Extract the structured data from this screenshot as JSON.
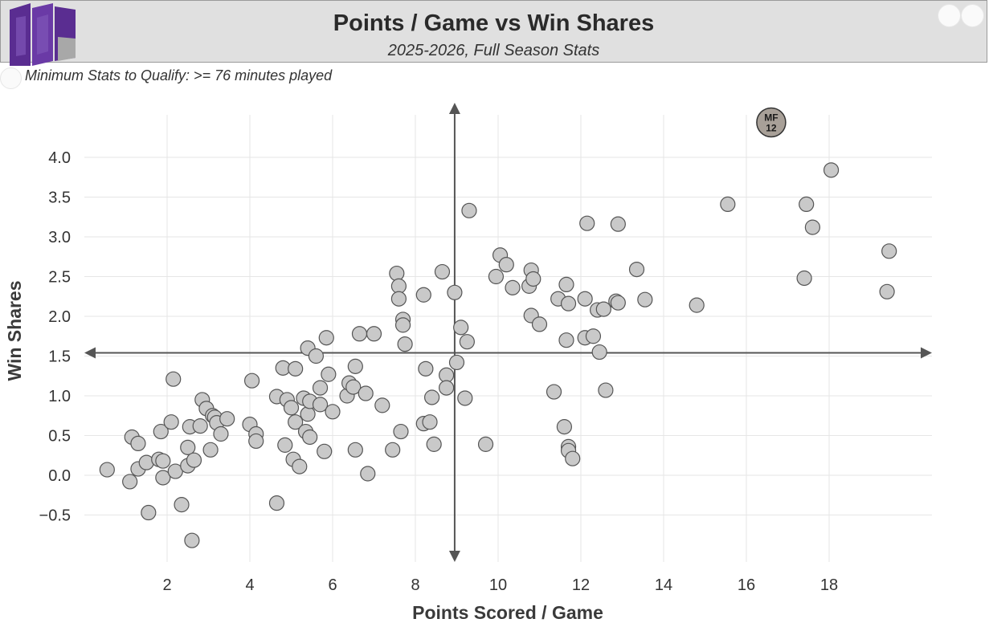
{
  "header": {
    "title": "Points / Game vs Win Shares",
    "subtitle": "2025-2026, Full Season Stats",
    "qualify_note": "Minimum Stats to Qualify: >= 76 minutes played"
  },
  "colors": {
    "point_fill": "#c9c9c9",
    "point_stroke": "#555555",
    "highlight_fill": "#a8a098",
    "axis_line": "#555555",
    "grid": "#e6e6e6",
    "logo": "#5a2d91"
  },
  "chart_data": {
    "type": "scatter",
    "title": "Points / Game vs Win Shares",
    "xlabel": "Points Scored / Game",
    "ylabel": "Win Shares",
    "xlim": [
      0,
      20.5
    ],
    "ylim": [
      -0.9,
      4.6
    ],
    "xticks": [
      2,
      4,
      6,
      8,
      10,
      12,
      14,
      16,
      18
    ],
    "yticks": [
      4.0,
      3.5,
      3.0,
      2.5,
      2.0,
      1.5,
      1.0,
      0.5,
      0.0,
      -0.5
    ],
    "ytick_labels": [
      "4.0",
      "3.5",
      "3.0",
      "2.5",
      "2.0",
      "1.5",
      "1.0",
      "0.5",
      "0.0",
      "−0.5"
    ],
    "grid": true,
    "reference_lines": {
      "x": 8.95,
      "y": 1.54
    },
    "highlight": {
      "label_line1": "MF",
      "label_line2": "12",
      "x": 16.6,
      "y": 4.44
    },
    "points": [
      [
        0.55,
        0.07
      ],
      [
        1.1,
        -0.08
      ],
      [
        1.15,
        0.48
      ],
      [
        1.3,
        0.4
      ],
      [
        1.3,
        0.08
      ],
      [
        1.5,
        0.16
      ],
      [
        1.55,
        -0.47
      ],
      [
        1.8,
        0.2
      ],
      [
        1.85,
        0.55
      ],
      [
        1.9,
        0.18
      ],
      [
        1.9,
        -0.03
      ],
      [
        2.1,
        0.67
      ],
      [
        2.15,
        1.21
      ],
      [
        2.2,
        0.05
      ],
      [
        2.35,
        -0.37
      ],
      [
        2.5,
        0.35
      ],
      [
        2.5,
        0.12
      ],
      [
        2.55,
        0.61
      ],
      [
        2.6,
        -0.82
      ],
      [
        2.65,
        0.19
      ],
      [
        2.8,
        0.62
      ],
      [
        2.85,
        0.95
      ],
      [
        2.95,
        0.84
      ],
      [
        3.05,
        0.32
      ],
      [
        3.1,
        0.75
      ],
      [
        3.15,
        0.73
      ],
      [
        3.2,
        0.66
      ],
      [
        3.3,
        0.52
      ],
      [
        3.45,
        0.71
      ],
      [
        4.0,
        0.64
      ],
      [
        4.05,
        1.19
      ],
      [
        4.15,
        0.52
      ],
      [
        4.15,
        0.43
      ],
      [
        4.65,
        0.99
      ],
      [
        4.65,
        -0.35
      ],
      [
        4.8,
        1.35
      ],
      [
        4.85,
        0.38
      ],
      [
        4.9,
        0.95
      ],
      [
        5.0,
        0.85
      ],
      [
        5.05,
        0.2
      ],
      [
        5.1,
        1.34
      ],
      [
        5.1,
        0.67
      ],
      [
        5.2,
        0.11
      ],
      [
        5.3,
        0.97
      ],
      [
        5.35,
        0.55
      ],
      [
        5.4,
        1.6
      ],
      [
        5.4,
        0.77
      ],
      [
        5.45,
        0.93
      ],
      [
        5.45,
        0.48
      ],
      [
        5.6,
        1.5
      ],
      [
        5.7,
        0.89
      ],
      [
        5.7,
        1.1
      ],
      [
        5.8,
        0.3
      ],
      [
        5.85,
        1.73
      ],
      [
        5.9,
        1.27
      ],
      [
        6.0,
        0.8
      ],
      [
        6.35,
        1.0
      ],
      [
        6.4,
        1.16
      ],
      [
        6.5,
        1.11
      ],
      [
        6.55,
        0.32
      ],
      [
        6.55,
        1.37
      ],
      [
        6.65,
        1.78
      ],
      [
        6.8,
        1.03
      ],
      [
        6.85,
        0.02
      ],
      [
        7.0,
        1.78
      ],
      [
        7.2,
        0.88
      ],
      [
        7.45,
        0.32
      ],
      [
        7.55,
        2.54
      ],
      [
        7.6,
        2.38
      ],
      [
        7.6,
        2.22
      ],
      [
        7.65,
        0.55
      ],
      [
        7.7,
        1.96
      ],
      [
        7.7,
        1.89
      ],
      [
        7.75,
        1.65
      ],
      [
        8.2,
        2.27
      ],
      [
        8.2,
        0.65
      ],
      [
        8.25,
        1.34
      ],
      [
        8.35,
        0.67
      ],
      [
        8.4,
        0.98
      ],
      [
        8.45,
        0.39
      ],
      [
        8.65,
        2.56
      ],
      [
        8.75,
        1.26
      ],
      [
        8.75,
        1.1
      ],
      [
        8.95,
        2.3
      ],
      [
        9.0,
        1.42
      ],
      [
        9.1,
        1.86
      ],
      [
        9.2,
        0.97
      ],
      [
        9.25,
        1.68
      ],
      [
        9.3,
        3.33
      ],
      [
        9.7,
        0.39
      ],
      [
        9.95,
        2.5
      ],
      [
        10.05,
        2.77
      ],
      [
        10.2,
        2.65
      ],
      [
        10.35,
        2.36
      ],
      [
        10.75,
        2.38
      ],
      [
        10.8,
        2.58
      ],
      [
        10.8,
        2.01
      ],
      [
        10.85,
        2.47
      ],
      [
        11.0,
        1.9
      ],
      [
        11.35,
        1.05
      ],
      [
        11.45,
        2.22
      ],
      [
        11.6,
        0.61
      ],
      [
        11.65,
        1.7
      ],
      [
        11.65,
        2.4
      ],
      [
        11.7,
        2.16
      ],
      [
        11.7,
        0.36
      ],
      [
        11.7,
        0.31
      ],
      [
        11.8,
        0.21
      ],
      [
        12.1,
        2.22
      ],
      [
        12.1,
        1.73
      ],
      [
        12.15,
        3.17
      ],
      [
        12.3,
        1.75
      ],
      [
        12.4,
        2.08
      ],
      [
        12.45,
        1.55
      ],
      [
        12.55,
        2.09
      ],
      [
        12.6,
        1.07
      ],
      [
        12.85,
        2.19
      ],
      [
        12.9,
        2.17
      ],
      [
        12.9,
        3.16
      ],
      [
        13.35,
        2.59
      ],
      [
        13.55,
        2.21
      ],
      [
        14.8,
        2.14
      ],
      [
        15.55,
        3.41
      ],
      [
        17.4,
        2.48
      ],
      [
        17.45,
        3.41
      ],
      [
        17.6,
        3.12
      ],
      [
        18.05,
        3.84
      ],
      [
        19.4,
        2.31
      ],
      [
        19.45,
        2.82
      ]
    ]
  }
}
